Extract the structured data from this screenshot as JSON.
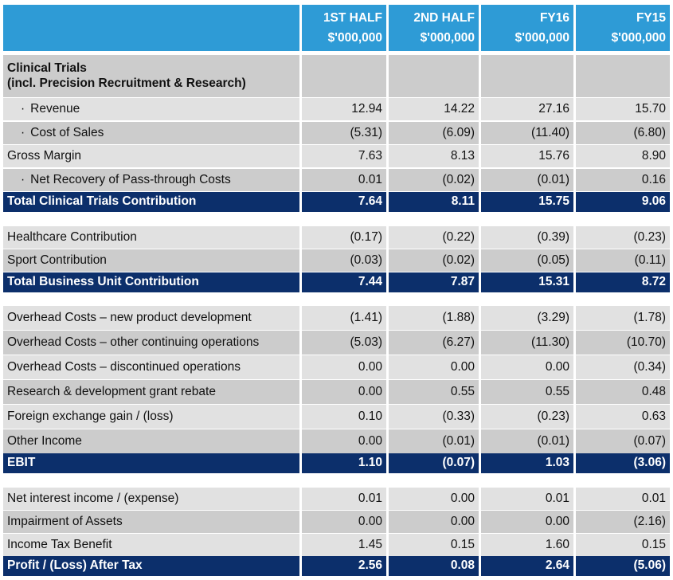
{
  "header": {
    "columns": [
      {
        "line1": "1ST HALF",
        "line2": "$'000,000"
      },
      {
        "line1": "2ND HALF",
        "line2": "$'000,000"
      },
      {
        "line1": "FY16",
        "line2": "$'000,000"
      },
      {
        "line1": "FY15",
        "line2": "$'000,000"
      }
    ]
  },
  "section_title": {
    "line1": "Clinical Trials",
    "line2": "(incl. Precision Recruitment & Research)"
  },
  "rows": [
    {
      "label": "Revenue",
      "bullet": "·",
      "values": [
        "12.94",
        "14.22",
        "27.16",
        "15.70"
      ]
    },
    {
      "label": "Cost of Sales",
      "bullet": "·",
      "values": [
        "(5.31)",
        "(6.09)",
        "(11.40)",
        "(6.80)"
      ]
    },
    {
      "label": "Gross Margin",
      "bullet": "",
      "values": [
        "7.63",
        "8.13",
        "15.76",
        "8.90"
      ]
    },
    {
      "label": "Net Recovery of Pass-through Costs",
      "bullet": "·",
      "values": [
        "0.01",
        "(0.02)",
        "(0.01)",
        "0.16"
      ]
    },
    {
      "label": "Total Clinical Trials Contribution",
      "bullet": "",
      "values": [
        "7.64",
        "8.11",
        "15.75",
        "9.06"
      ]
    },
    {
      "label": "Healthcare Contribution",
      "bullet": "",
      "values": [
        "(0.17)",
        "(0.22)",
        "(0.39)",
        "(0.23)"
      ]
    },
    {
      "label": "Sport Contribution",
      "bullet": "",
      "values": [
        "(0.03)",
        "(0.02)",
        "(0.05)",
        "(0.11)"
      ]
    },
    {
      "label": "Total Business Unit Contribution",
      "bullet": "",
      "values": [
        "7.44",
        "7.87",
        "15.31",
        "8.72"
      ]
    },
    {
      "label": "Overhead Costs – new product development",
      "bullet": "",
      "values": [
        "(1.41)",
        "(1.88)",
        "(3.29)",
        "(1.78)"
      ]
    },
    {
      "label": "Overhead Costs – other continuing operations",
      "bullet": "",
      "values": [
        "(5.03)",
        "(6.27)",
        "(11.30)",
        "(10.70)"
      ]
    },
    {
      "label": "Overhead Costs – discontinued operations",
      "bullet": "",
      "values": [
        "0.00",
        "0.00",
        "0.00",
        "(0.34)"
      ]
    },
    {
      "label": "Research & development grant rebate",
      "bullet": "",
      "values": [
        "0.00",
        "0.55",
        "0.55",
        "0.48"
      ]
    },
    {
      "label": "Foreign exchange gain / (loss)",
      "bullet": "",
      "values": [
        "0.10",
        "(0.33)",
        "(0.23)",
        "0.63"
      ]
    },
    {
      "label": "Other Income",
      "bullet": "",
      "values": [
        "0.00",
        "(0.01)",
        "(0.01)",
        "(0.07)"
      ]
    },
    {
      "label": "EBIT",
      "bullet": "",
      "values": [
        "1.10",
        "(0.07)",
        "1.03",
        "(3.06)"
      ]
    },
    {
      "label": "Net interest income / (expense)",
      "bullet": "",
      "values": [
        "0.01",
        "0.00",
        "0.01",
        "0.01"
      ]
    },
    {
      "label": "Impairment of Assets",
      "bullet": "",
      "values": [
        "0.00",
        "0.00",
        "0.00",
        "(2.16)"
      ]
    },
    {
      "label": "Income Tax Benefit",
      "bullet": "",
      "values": [
        "1.45",
        "0.15",
        "1.60",
        "0.15"
      ]
    },
    {
      "label": "Profit / (Loss) After Tax",
      "bullet": "",
      "values": [
        "2.56",
        "0.08",
        "2.64",
        "(5.06)"
      ]
    }
  ],
  "colors": {
    "header_blue": "#2e9bd6",
    "total_navy": "#0c2f6b",
    "row_grey_light": "#e1e1e1",
    "row_grey_dark": "#cccccc"
  }
}
